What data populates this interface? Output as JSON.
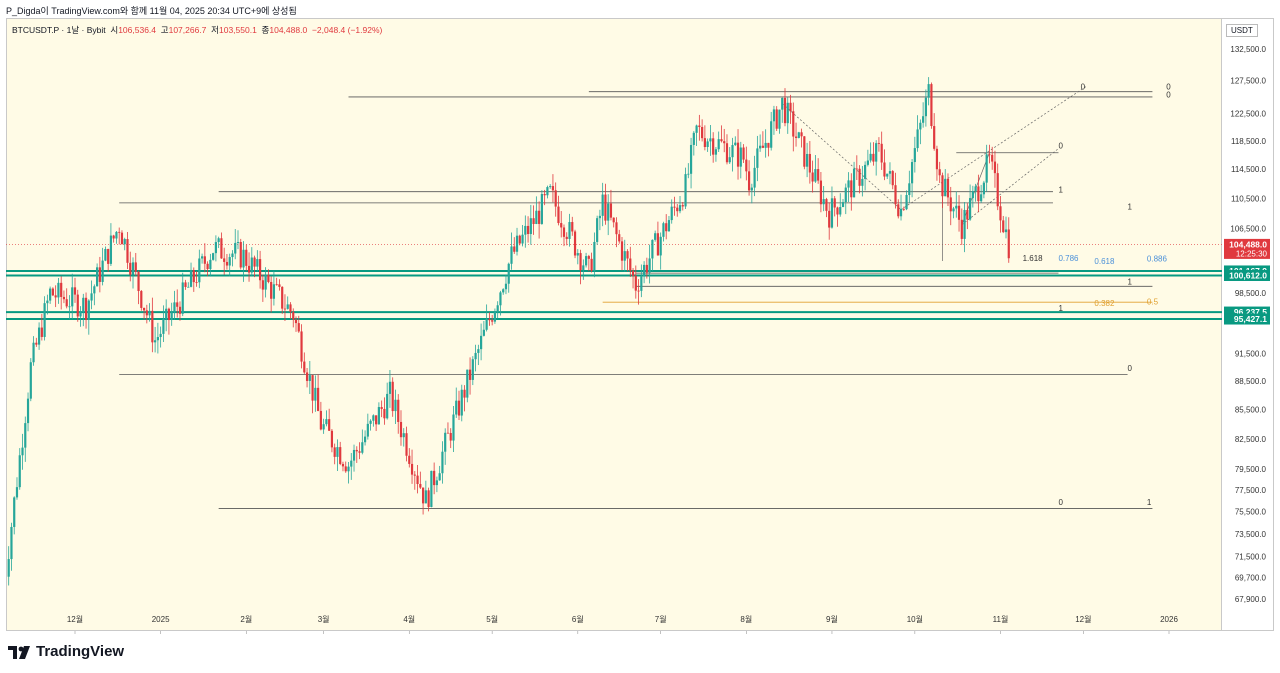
{
  "header": {
    "publish_line": "P_Digda이 TradingView.com와 함께 11월 04, 2025 20:34 UTC+9에 상성됨"
  },
  "legend": {
    "symbol": "BTCUSDT.P · 1날 · Bybit",
    "open_label": "시",
    "open": "106,536.4",
    "high_label": "고",
    "high": "107,266.7",
    "low_label": "저",
    "low": "103,550.1",
    "close_label": "종",
    "close": "104,488.0",
    "change": "−2,048.4 (−1.92%)"
  },
  "axis": {
    "unit": "USDT"
  },
  "brand": {
    "name": "TradingView"
  },
  "colors": {
    "background": "#fffbe6",
    "up": "#26a69a",
    "down": "#e0393e",
    "level_line": "#089981",
    "fib_orange": "#e0a030",
    "fib_blue": "#4a90d9"
  },
  "chart_data": {
    "type": "candlestick",
    "symbol": "BTCUSDT.P",
    "timeframe": "1D",
    "exchange": "Bybit",
    "y_axis": {
      "ticks": [
        132500,
        127500,
        122500,
        118500,
        114500,
        110500,
        106500,
        98500,
        91500,
        88500,
        85500,
        82500,
        79500,
        77500,
        75500,
        73500,
        71500,
        69700,
        67900
      ],
      "tick_labels": [
        "132,500.0",
        "127,500.0",
        "122,500.0",
        "118,500.0",
        "114,500.0",
        "110,500.0",
        "106,500.0",
        "98,500.0",
        "91,500.0",
        "88,500.0",
        "85,500.0",
        "82,500.0",
        "79,500.0",
        "77,500.0",
        "75,500.0",
        "73,500.0",
        "71,500.0",
        "69,700.0",
        "67,900.0"
      ],
      "scale": "log"
    },
    "x_axis": {
      "labels": [
        "12월",
        "2025",
        "2월",
        "3월",
        "4월",
        "5월",
        "6월",
        "7월",
        "8월",
        "9월",
        "10월",
        "11월",
        "12월",
        "2026"
      ],
      "months": [
        "2024-12",
        "2025-01",
        "2025-02",
        "2025-03",
        "2025-04",
        "2025-05",
        "2025-06",
        "2025-07",
        "2025-08",
        "2025-09",
        "2025-10",
        "2025-11",
        "2025-12",
        "2026-01"
      ]
    },
    "price_anchors": [
      {
        "date": "2024-11-05",
        "price": 68500
      },
      {
        "date": "2024-11-15",
        "price": 90000
      },
      {
        "date": "2024-11-22",
        "price": 98500
      },
      {
        "date": "2024-12-05",
        "price": 97000
      },
      {
        "date": "2024-12-17",
        "price": 107000
      },
      {
        "date": "2024-12-30",
        "price": 93000
      },
      {
        "date": "2025-01-20",
        "price": 104000
      },
      {
        "date": "2025-01-31",
        "price": 103000
      },
      {
        "date": "2025-02-18",
        "price": 96000
      },
      {
        "date": "2025-02-28",
        "price": 84000
      },
      {
        "date": "2025-03-10",
        "price": 80000
      },
      {
        "date": "2025-03-25",
        "price": 87000
      },
      {
        "date": "2025-04-07",
        "price": 76500
      },
      {
        "date": "2025-04-21",
        "price": 87500
      },
      {
        "date": "2025-05-08",
        "price": 103000
      },
      {
        "date": "2025-05-22",
        "price": 111000
      },
      {
        "date": "2025-06-05",
        "price": 101000
      },
      {
        "date": "2025-06-10",
        "price": 110000
      },
      {
        "date": "2025-06-22",
        "price": 99500
      },
      {
        "date": "2025-07-10",
        "price": 112000
      },
      {
        "date": "2025-07-14",
        "price": 120000
      },
      {
        "date": "2025-07-31",
        "price": 116000
      },
      {
        "date": "2025-08-02",
        "price": 113000
      },
      {
        "date": "2025-08-14",
        "price": 124000
      },
      {
        "date": "2025-08-31",
        "price": 108500
      },
      {
        "date": "2025-09-18",
        "price": 117000
      },
      {
        "date": "2025-09-26",
        "price": 109000
      },
      {
        "date": "2025-10-06",
        "price": 125800
      },
      {
        "date": "2025-10-10",
        "price": 113000
      },
      {
        "date": "2025-10-18",
        "price": 107000
      },
      {
        "date": "2025-10-28",
        "price": 115500
      },
      {
        "date": "2025-11-04",
        "price": 104488
      }
    ],
    "price_tags": [
      {
        "price": 104488.0,
        "label": "104,488.0",
        "sub": "12:25:30",
        "color": "#e0393e"
      },
      {
        "price": 101167.9,
        "label": "101,167.9",
        "color": "#089981"
      },
      {
        "price": 100612.0,
        "label": "100,612.0",
        "color": "#089981"
      },
      {
        "price": 96237.5,
        "label": "96,237.5",
        "color": "#089981"
      },
      {
        "price": 95427.1,
        "label": "95,427.1",
        "color": "#089981"
      }
    ],
    "annotations": [
      {
        "text": "0",
        "price": 126600,
        "date": "2025-11-30"
      },
      {
        "text": "0",
        "price": 126600,
        "date": "2025-12-31"
      },
      {
        "text": "0",
        "price": 125400,
        "date": "2025-12-31"
      },
      {
        "text": "0",
        "price": 117800,
        "date": "2025-11-22"
      },
      {
        "text": "1",
        "price": 111700,
        "date": "2025-11-22"
      },
      {
        "text": "1",
        "price": 109400,
        "date": "2025-12-17"
      },
      {
        "text": "1.618",
        "price": 102800,
        "date": "2025-11-09"
      },
      {
        "text": "0.786",
        "price": 102800,
        "date": "2025-11-22",
        "color": "#4a90d9"
      },
      {
        "text": "0.618",
        "price": 102400,
        "date": "2025-12-05",
        "color": "#4a90d9"
      },
      {
        "text": "0.886",
        "price": 102700,
        "date": "2025-12-24",
        "color": "#4a90d9"
      },
      {
        "text": "1",
        "price": 99900,
        "date": "2025-12-17"
      },
      {
        "text": "0.382",
        "price": 97300,
        "date": "2025-12-05",
        "color": "#e0a030"
      },
      {
        "text": "0.5",
        "price": 97500,
        "date": "2025-12-24",
        "color": "#e0a030"
      },
      {
        "text": "1",
        "price": 96700,
        "date": "2025-11-22"
      },
      {
        "text": "0",
        "price": 89900,
        "date": "2025-12-17"
      },
      {
        "text": "0",
        "price": 76400,
        "date": "2025-11-22"
      },
      {
        "text": "1",
        "price": 76400,
        "date": "2025-12-24"
      }
    ],
    "horizontal_levels": [
      {
        "price": 125800,
        "from": "2025-06-05",
        "to": "2025-12-26",
        "color": "#555555"
      },
      {
        "price": 125000,
        "from": "2025-03-10",
        "to": "2025-12-26",
        "color": "#555555"
      },
      {
        "price": 116800,
        "from": "2025-10-16",
        "to": "2025-11-22",
        "color": "#555555"
      },
      {
        "price": 111400,
        "from": "2025-01-22",
        "to": "2025-11-20",
        "color": "#555555"
      },
      {
        "price": 109900,
        "from": "2024-12-17",
        "to": "2025-11-20",
        "color": "#555555"
      },
      {
        "price": 101167.9,
        "from": "2024-11-01",
        "to": "2026-01-31",
        "color": "#089981",
        "width": 2
      },
      {
        "price": 100612.0,
        "from": "2024-11-01",
        "to": "2026-01-31",
        "color": "#089981",
        "width": 2
      },
      {
        "price": 100900,
        "from": "2025-06-22",
        "to": "2025-11-22",
        "color": "#555555"
      },
      {
        "price": 99300,
        "from": "2025-06-22",
        "to": "2025-12-26",
        "color": "#555555"
      },
      {
        "price": 97400,
        "from": "2025-06-10",
        "to": "2025-12-26",
        "color": "#e0a030"
      },
      {
        "price": 96237.5,
        "from": "2024-11-01",
        "to": "2026-01-31",
        "color": "#089981",
        "width": 2
      },
      {
        "price": 95427.1,
        "from": "2024-11-01",
        "to": "2026-01-31",
        "color": "#089981",
        "width": 2
      },
      {
        "price": 89200,
        "from": "2024-12-17",
        "to": "2025-12-17",
        "color": "#555555"
      },
      {
        "price": 75800,
        "from": "2025-01-22",
        "to": "2025-12-26",
        "color": "#555555"
      }
    ],
    "trend_lines": [
      {
        "from": {
          "date": "2025-08-14",
          "price": 124000
        },
        "to": {
          "date": "2025-09-26",
          "price": 109000
        },
        "dashed": true
      },
      {
        "from": {
          "date": "2025-09-26",
          "price": 109000
        },
        "to": {
          "date": "2025-12-02",
          "price": 126600
        },
        "dashed": true
      },
      {
        "from": {
          "date": "2025-10-18",
          "price": 107000
        },
        "to": {
          "date": "2025-11-22",
          "price": 117400
        },
        "dashed": true
      },
      {
        "from": {
          "date": "2025-10-18",
          "price": 107000
        },
        "to": {
          "date": "2025-10-28",
          "price": 116800
        },
        "dashed": false
      },
      {
        "from": {
          "date": "2025-10-11",
          "price": 102400
        },
        "to": {
          "date": "2025-10-11",
          "price": 113000
        },
        "dashed": false
      }
    ]
  }
}
